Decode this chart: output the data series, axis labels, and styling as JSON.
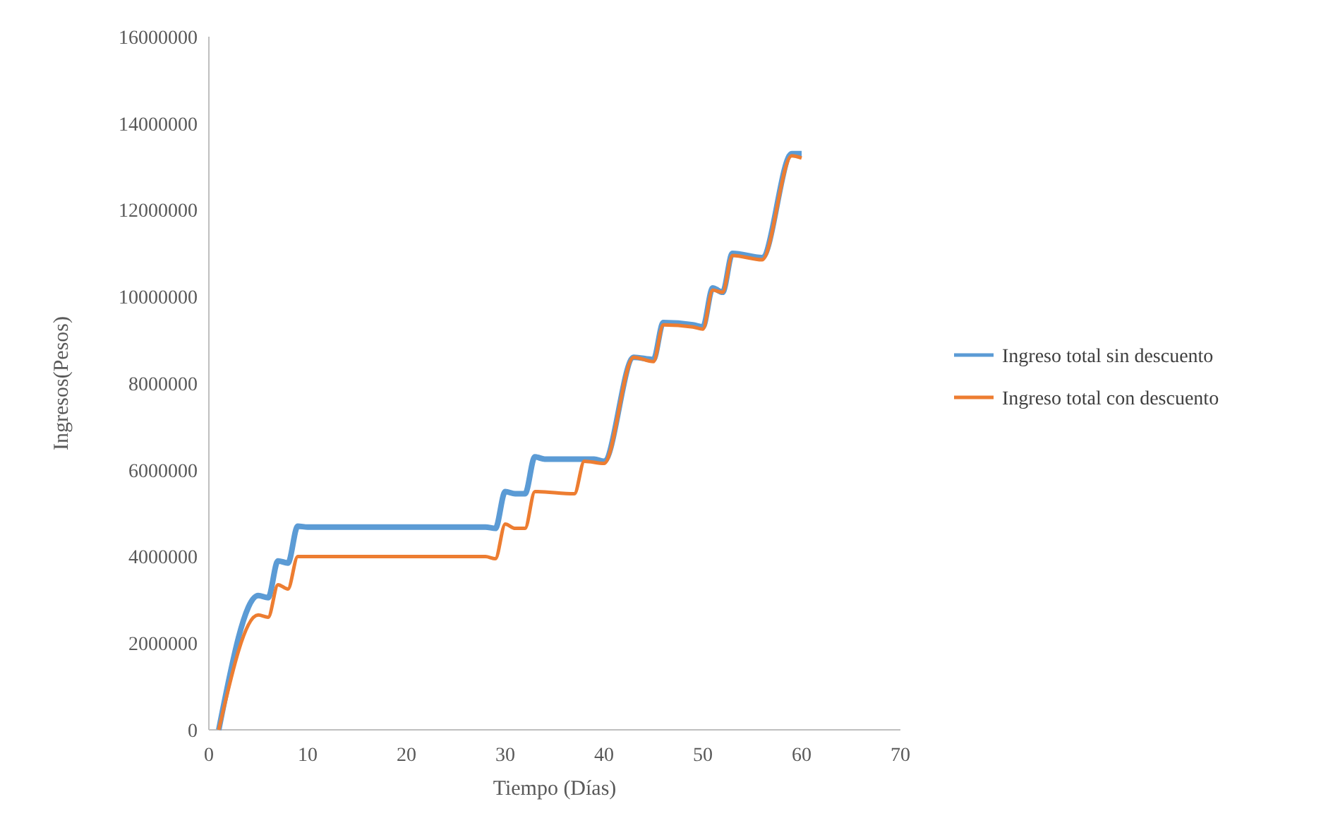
{
  "chart_data": {
    "type": "line",
    "xlabel": "Tiempo (Días)",
    "ylabel": "Ingresos(Pesos)",
    "xlim": [
      0,
      70
    ],
    "xticks": [
      0,
      10,
      20,
      30,
      40,
      50,
      60,
      70
    ],
    "ylim": [
      0,
      16000000
    ],
    "yticks": [
      0,
      2000000,
      4000000,
      6000000,
      8000000,
      10000000,
      12000000,
      14000000,
      16000000
    ],
    "grid": false,
    "legend": "right",
    "marker": "none",
    "line_style": "solid",
    "series": [
      {
        "name": "Ingreso total sin descuento",
        "color": "#5b9bd5",
        "x": [
          1,
          5,
          6,
          7,
          8,
          9,
          10,
          28,
          29,
          30,
          31,
          32,
          33,
          34,
          39,
          40,
          43,
          45,
          46,
          49,
          50,
          51,
          52,
          53,
          56,
          59,
          60
        ],
        "values": [
          0,
          3100000,
          3050000,
          3900000,
          3850000,
          4700000,
          4680000,
          4680000,
          4650000,
          5500000,
          5450000,
          5450000,
          6300000,
          6250000,
          6250000,
          6200000,
          8600000,
          8550000,
          9400000,
          9350000,
          9300000,
          10200000,
          10100000,
          11000000,
          10900000,
          13300000,
          13300000
        ]
      },
      {
        "name": "Ingreso total con descuento",
        "color": "#ed7d31",
        "x": [
          1,
          5,
          6,
          7,
          8,
          9,
          10,
          28,
          29,
          30,
          31,
          32,
          33,
          37,
          38,
          40,
          43,
          45,
          46,
          49,
          50,
          51,
          52,
          53,
          56,
          59,
          60
        ],
        "values": [
          0,
          2650000,
          2600000,
          3350000,
          3250000,
          4000000,
          4000000,
          4000000,
          3950000,
          4750000,
          4650000,
          4650000,
          5500000,
          5450000,
          6200000,
          6150000,
          8600000,
          8500000,
          9350000,
          9300000,
          9250000,
          10150000,
          10100000,
          10950000,
          10850000,
          13250000,
          13200000
        ]
      }
    ]
  }
}
